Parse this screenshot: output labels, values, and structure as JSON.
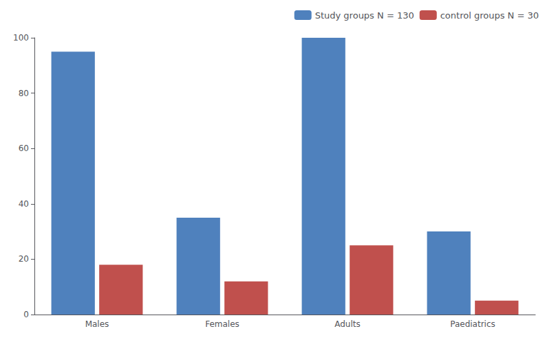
{
  "chart_data": {
    "type": "bar",
    "categories": [
      "Males",
      "Females",
      "Adults",
      "Paediatrics"
    ],
    "series": [
      {
        "name": "Study groups N = 130",
        "color": "#4F81BD",
        "values": [
          95,
          35,
          100,
          30
        ]
      },
      {
        "name": "control groups N = 30",
        "color": "#C0504D",
        "values": [
          18,
          12,
          25,
          5
        ]
      }
    ],
    "ylim": [
      0,
      100
    ],
    "yticks": [
      0,
      20,
      40,
      60,
      80,
      100
    ],
    "grid": false,
    "legend": "upper right"
  }
}
